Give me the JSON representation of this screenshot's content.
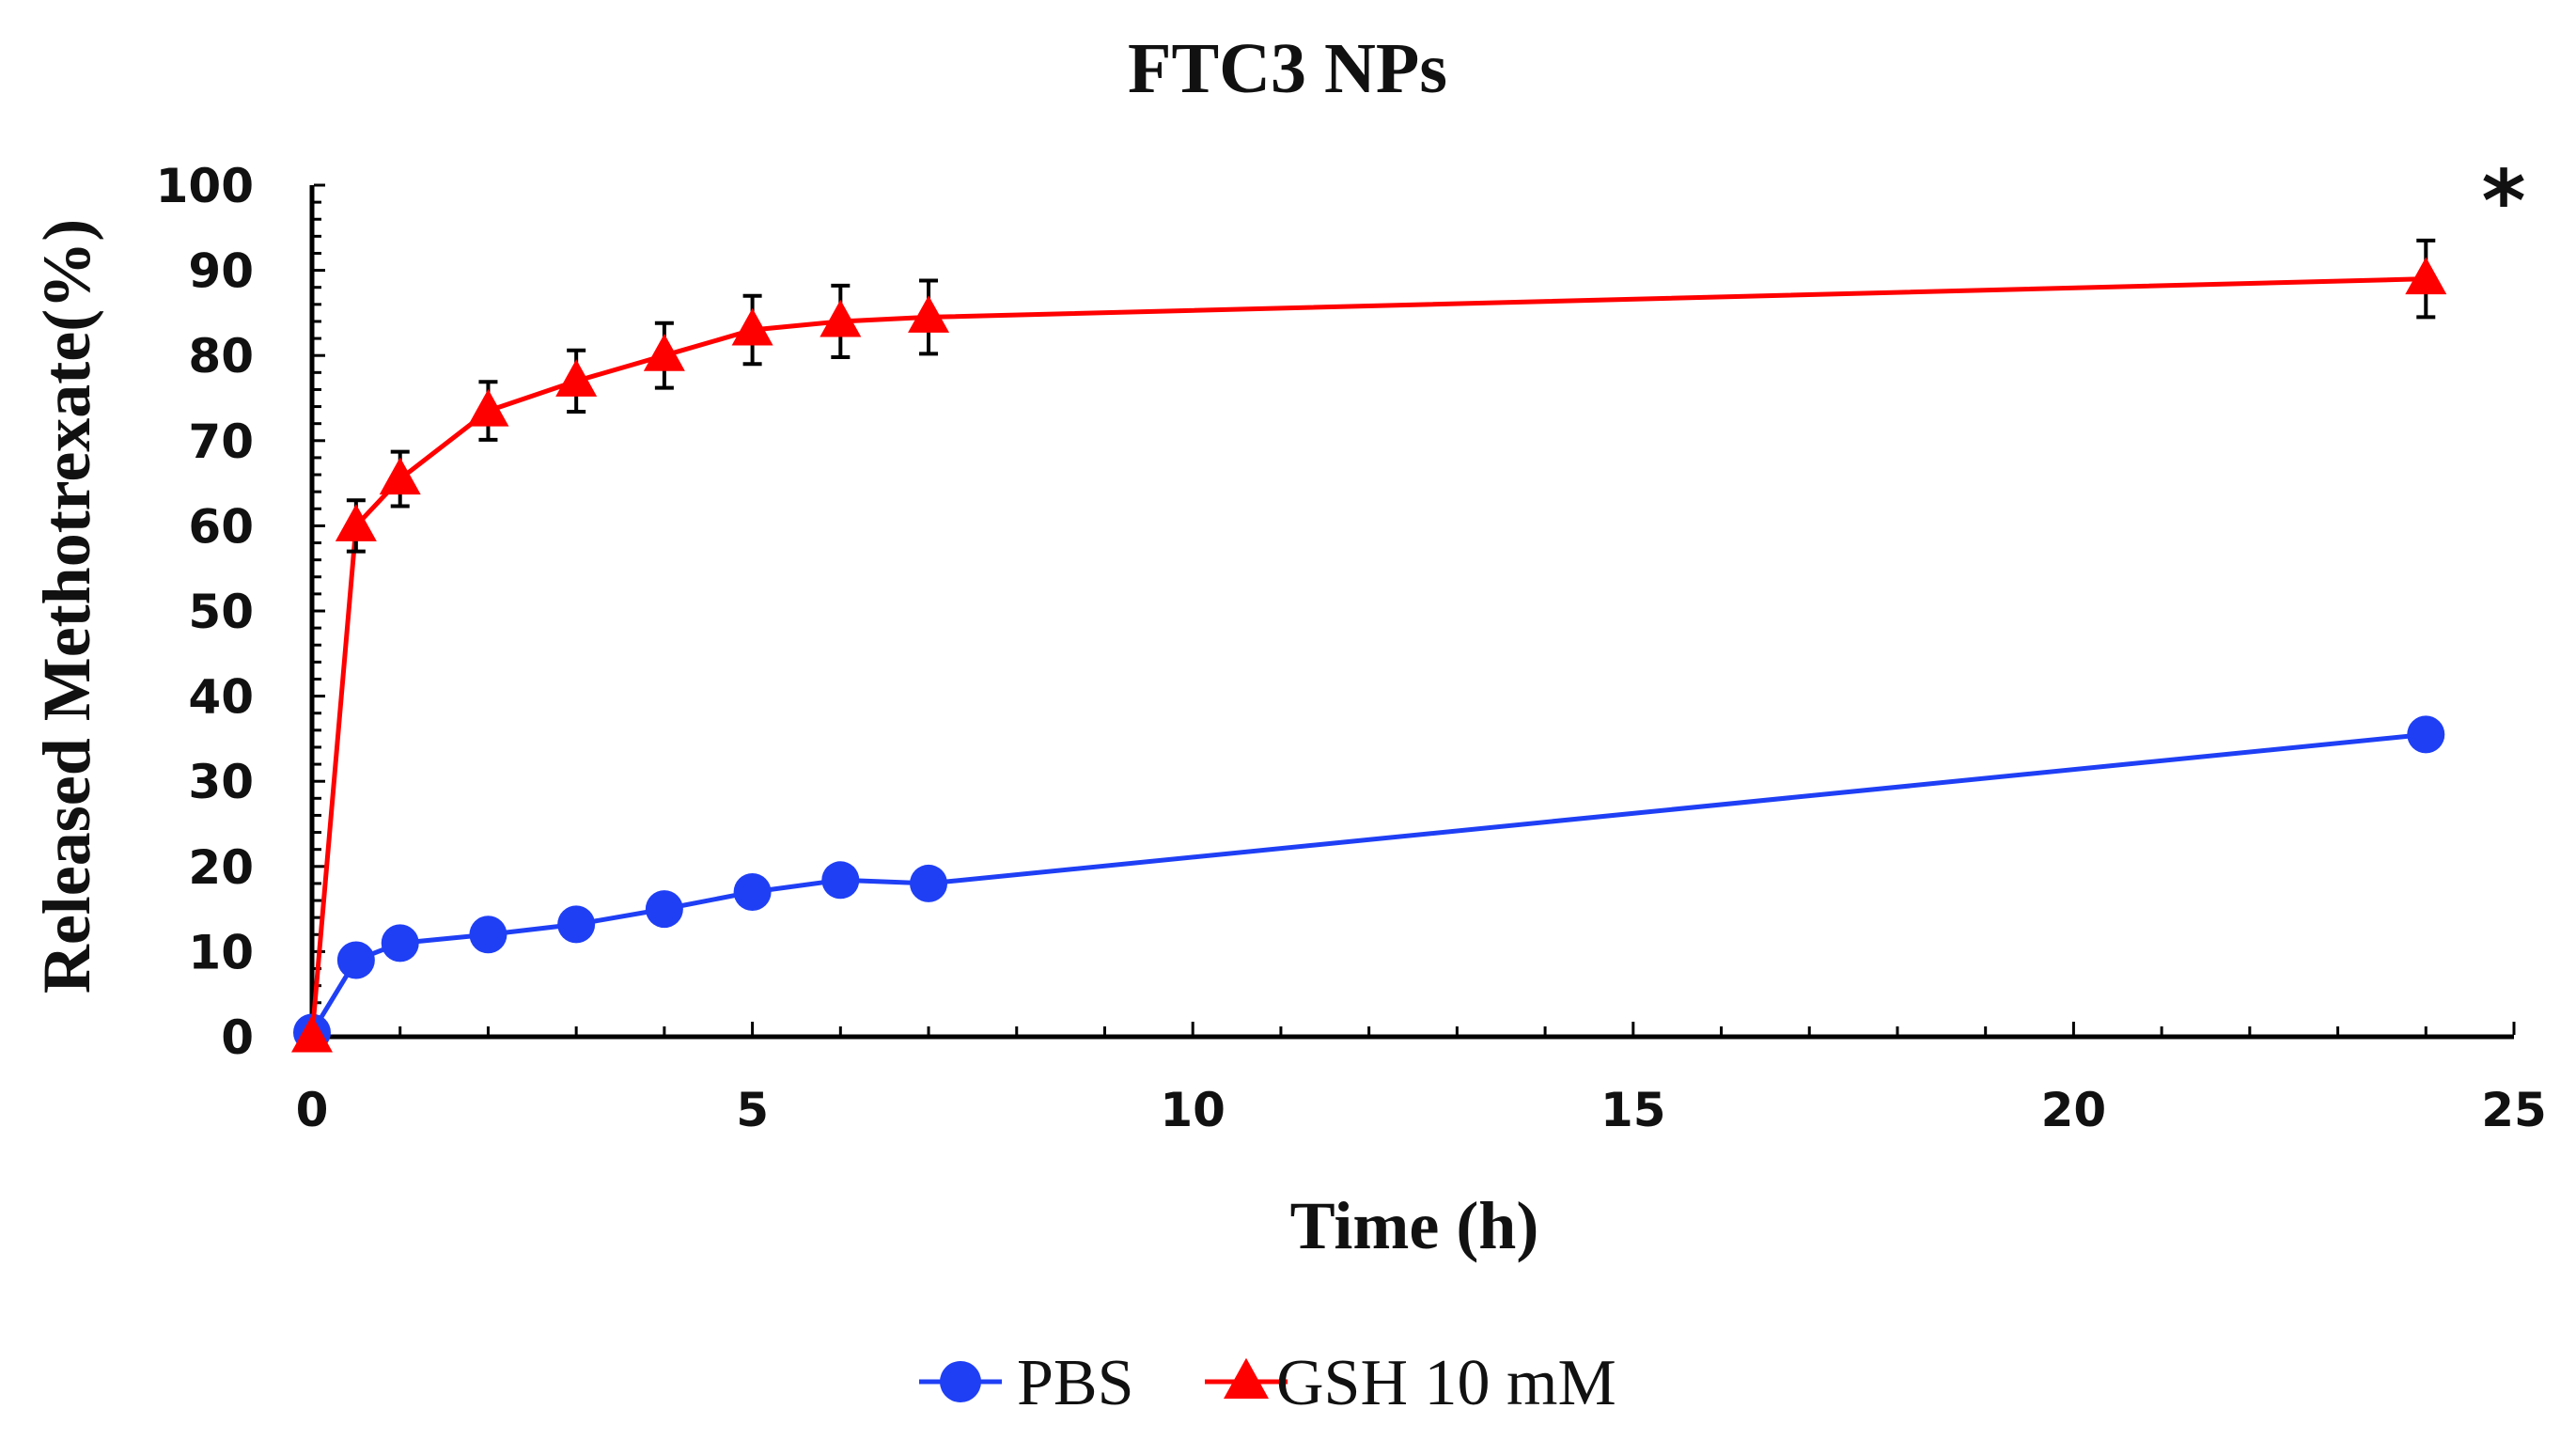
{
  "chart_data": {
    "type": "line",
    "title": "FTC3 NPs",
    "xlabel": "Time (h)",
    "ylabel": "Released Methotrexate(%)",
    "xlim": [
      0,
      25
    ],
    "ylim": [
      0,
      100
    ],
    "xticks": [
      0,
      5,
      10,
      15,
      20,
      25
    ],
    "yticks": [
      0,
      10,
      20,
      30,
      40,
      50,
      60,
      70,
      80,
      90,
      100
    ],
    "grid": false,
    "legend_position": "bottom-center",
    "annotation": "*",
    "series": [
      {
        "name": "PBS",
        "color": "#1f3ff5",
        "marker": "circle",
        "x": [
          0,
          0.5,
          1,
          2,
          3,
          4,
          5,
          6,
          7,
          24
        ],
        "y": [
          0.5,
          9,
          11,
          12,
          13.2,
          15,
          17,
          18.4,
          18,
          35.5
        ]
      },
      {
        "name": "GSH 10 mM",
        "color": "#ff0000",
        "marker": "triangle",
        "x": [
          0,
          0.5,
          1,
          2,
          3,
          4,
          5,
          6,
          7,
          24
        ],
        "y": [
          0,
          60,
          65.5,
          73.5,
          77,
          80,
          83,
          84,
          84.5,
          89
        ],
        "error": [
          0,
          3,
          3.2,
          3.4,
          3.6,
          3.8,
          4,
          4.2,
          4.3,
          4.5
        ]
      }
    ]
  }
}
